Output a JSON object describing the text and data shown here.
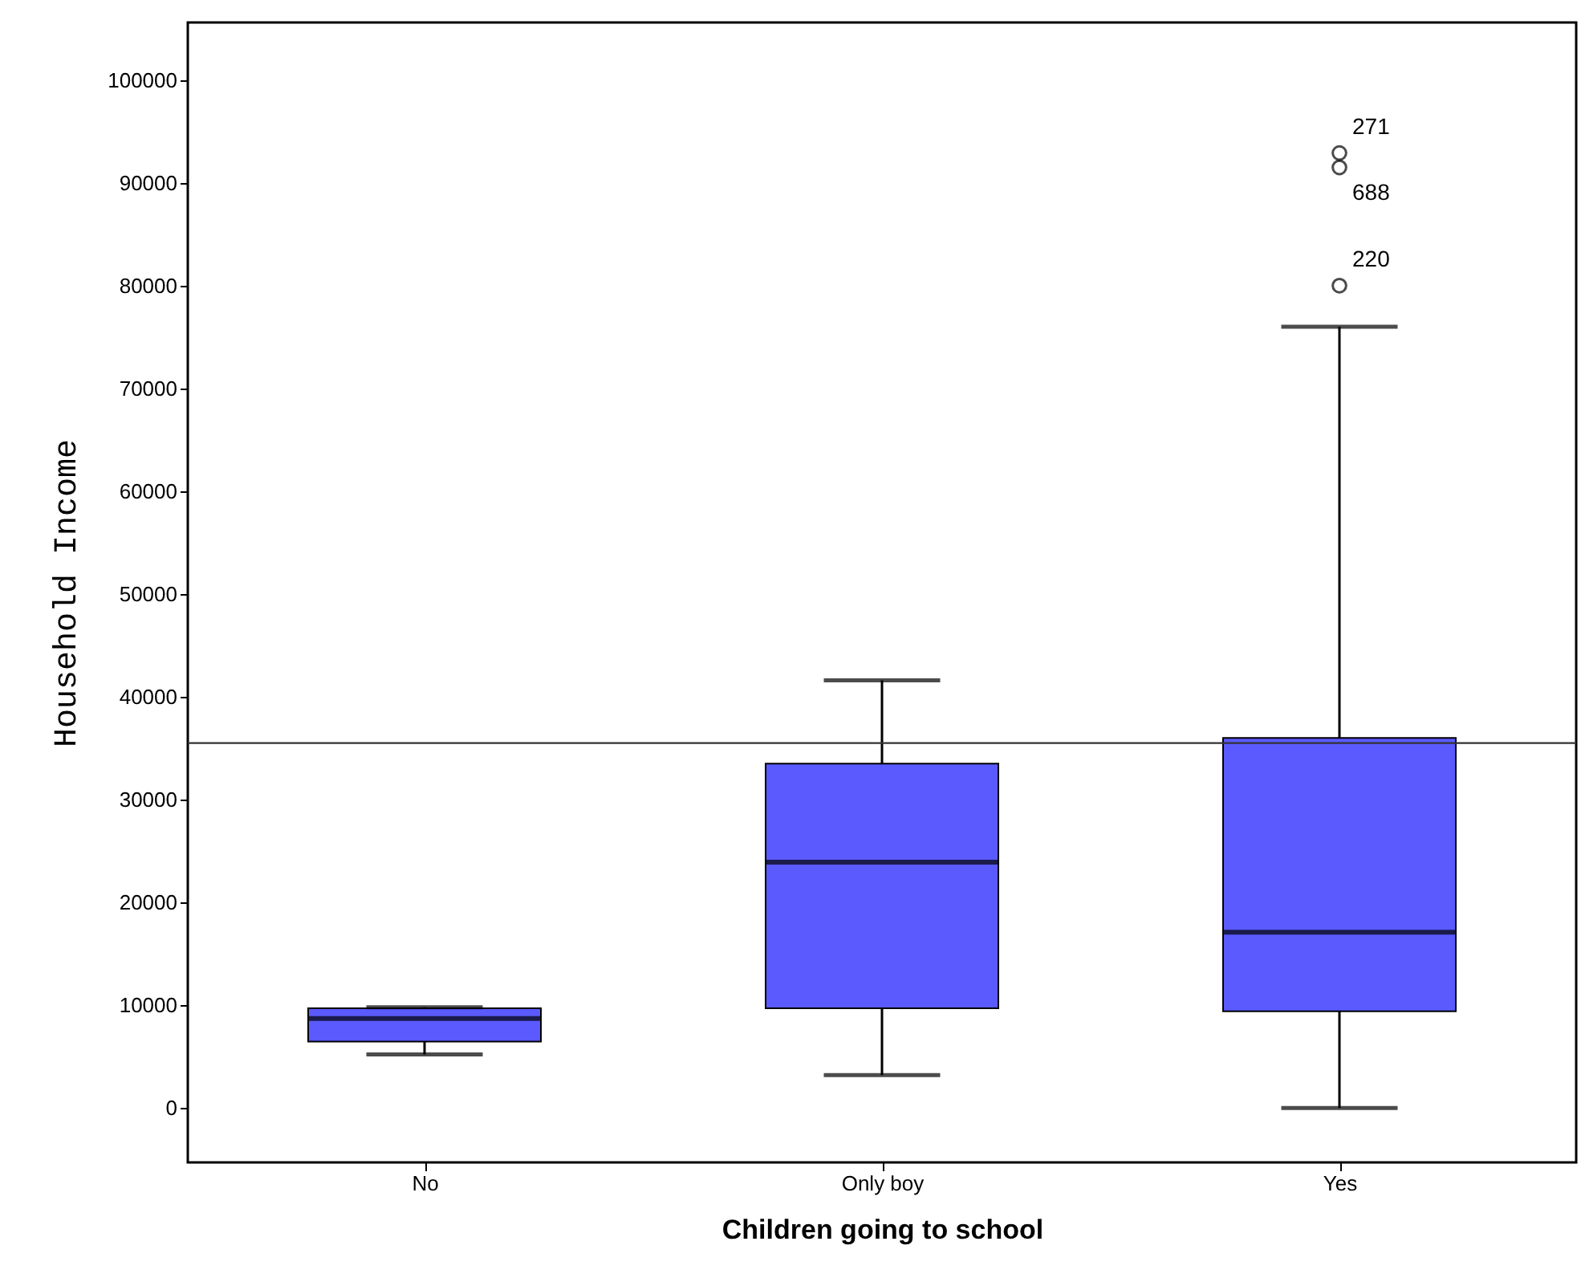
{
  "chart_data": {
    "type": "box",
    "xlabel": "Children going to school",
    "ylabel": "Household Income",
    "categories": [
      "No",
      "Only boy",
      "Yes"
    ],
    "boxes": [
      {
        "low": 5200,
        "q1": 6450,
        "median": 8700,
        "q3": 9700,
        "high": 9800
      },
      {
        "low": 3200,
        "q1": 9700,
        "median": 23900,
        "q3": 33500,
        "high": 41600
      },
      {
        "low": 0,
        "q1": 9400,
        "median": 17100,
        "q3": 36000,
        "high": 76000,
        "outliers": [
          92900,
          91500,
          80000
        ]
      }
    ],
    "color": "#5a5aff",
    "ylim": [
      -5300,
      105600
    ],
    "yticks": [
      0,
      10000,
      20000,
      30000,
      40000,
      50000,
      60000,
      70000,
      80000,
      90000,
      100000
    ],
    "ref_lines": [
      {
        "axis": "y",
        "value": 35500
      }
    ],
    "annotations": [
      "271",
      "688",
      "220"
    ],
    "grid": false
  }
}
